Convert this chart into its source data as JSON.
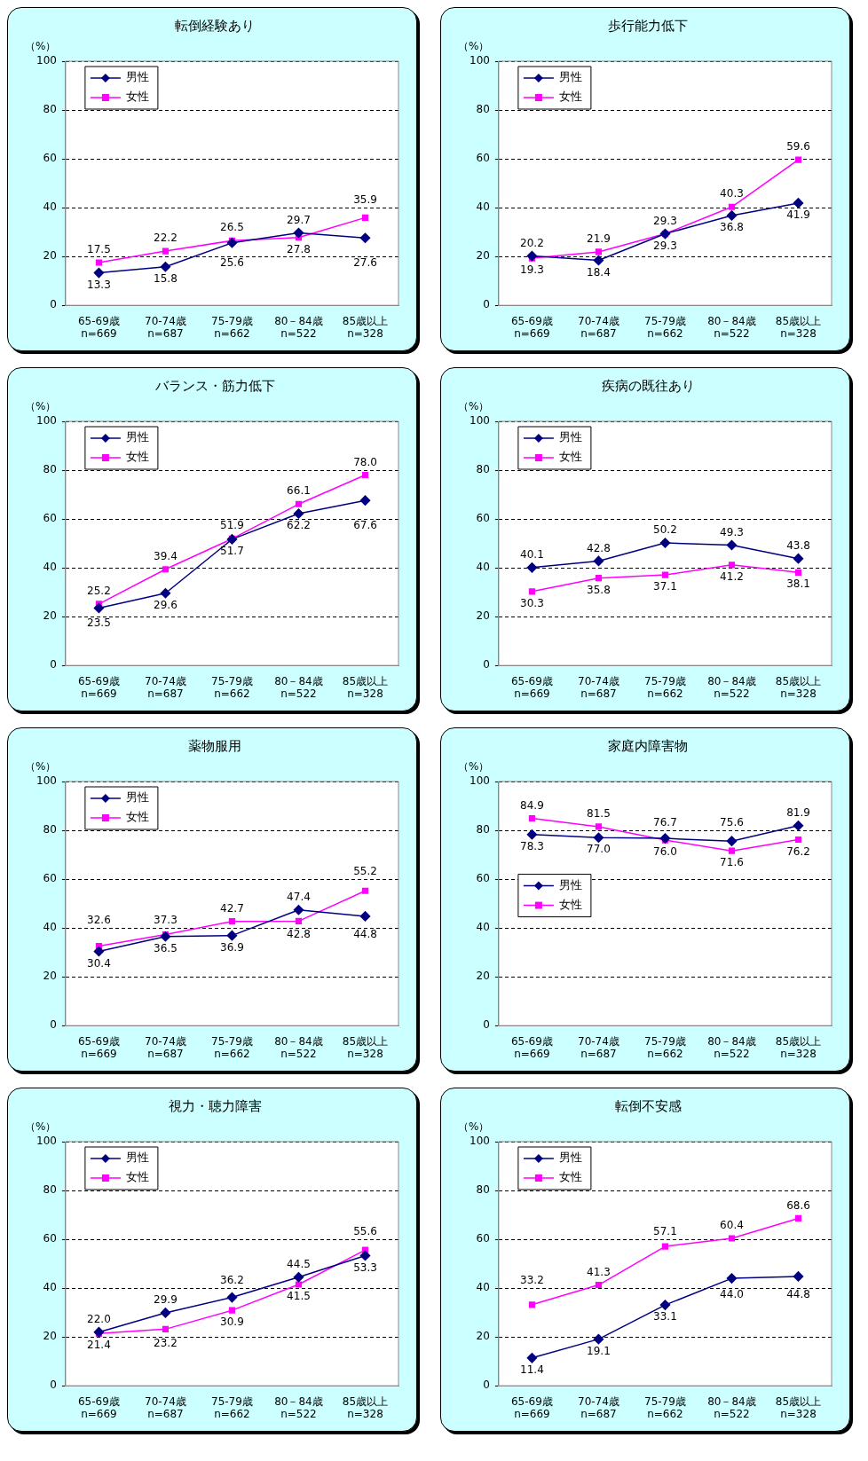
{
  "chart_data": [
    {
      "type": "line",
      "title": "転倒経験あり",
      "ylabel": "（%）",
      "categories": [
        "65-69歳\nn=669",
        "70-74歳\nn=687",
        "75-79歳\nn=662",
        "80－84歳\nn=522",
        "85歳以上\nn=328"
      ],
      "ylim": [
        0,
        100
      ],
      "yticks": [
        0,
        20,
        40,
        60,
        80,
        100
      ],
      "grid": "y",
      "legend": "top left",
      "series": [
        {
          "name": "男性",
          "color": "#000080",
          "marker": "diamond",
          "values": [
            13.3,
            15.8,
            25.6,
            29.7,
            27.6
          ],
          "value_labels": [
            "13.3",
            "15.8",
            "25.6",
            "29.7",
            "27.6"
          ]
        },
        {
          "name": "女性",
          "color": "#ff00ff",
          "marker": "square",
          "values": [
            17.5,
            22.2,
            26.5,
            27.8,
            35.9
          ],
          "value_labels": [
            "17.5",
            "22.2",
            "26.5",
            "27.8",
            "35.9"
          ]
        }
      ]
    },
    {
      "type": "line",
      "title": "歩行能力低下",
      "ylabel": "（%）",
      "categories": [
        "65-69歳\nn=669",
        "70-74歳\nn=687",
        "75-79歳\nn=662",
        "80－84歳\nn=522",
        "85歳以上\nn=328"
      ],
      "ylim": [
        0,
        100
      ],
      "yticks": [
        0,
        20,
        40,
        60,
        80,
        100
      ],
      "grid": "y",
      "legend": "top left",
      "series": [
        {
          "name": "男性",
          "color": "#000080",
          "marker": "diamond",
          "values": [
            20.2,
            18.4,
            29.3,
            36.8,
            41.9
          ],
          "value_labels": [
            "20.2",
            "18.4",
            "29.3",
            "36.8",
            "41.9"
          ]
        },
        {
          "name": "女性",
          "color": "#ff00ff",
          "marker": "square",
          "values": [
            19.3,
            21.9,
            29.3,
            40.3,
            59.6
          ],
          "value_labels": [
            "19.3",
            "21.9",
            "29.3",
            "40.3",
            "59.6"
          ]
        }
      ]
    },
    {
      "type": "line",
      "title": "バランス・筋力低下",
      "ylabel": "（%）",
      "categories": [
        "65-69歳\nn=669",
        "70-74歳\nn=687",
        "75-79歳\nn=662",
        "80－84歳\nn=522",
        "85歳以上\nn=328"
      ],
      "ylim": [
        0,
        100
      ],
      "yticks": [
        0,
        20,
        40,
        60,
        80,
        100
      ],
      "grid": "y",
      "legend": "top left",
      "series": [
        {
          "name": "男性",
          "color": "#000080",
          "marker": "diamond",
          "values": [
            23.5,
            29.6,
            51.7,
            62.2,
            67.6
          ],
          "value_labels": [
            "23.5",
            "29.6",
            "51.7",
            "62.2",
            "67.6"
          ]
        },
        {
          "name": "女性",
          "color": "#ff00ff",
          "marker": "square",
          "values": [
            25.2,
            39.4,
            51.9,
            66.1,
            78.0
          ],
          "value_labels": [
            "25.2",
            "39.4",
            "51.9",
            "66.1",
            "78.0"
          ]
        }
      ]
    },
    {
      "type": "line",
      "title": "疾病の既往あり",
      "ylabel": "（%）",
      "categories": [
        "65-69歳\nn=669",
        "70-74歳\nn=687",
        "75-79歳\nn=662",
        "80－84歳\nn=522",
        "85歳以上\nn=328"
      ],
      "ylim": [
        0,
        100
      ],
      "yticks": [
        0,
        20,
        40,
        60,
        80,
        100
      ],
      "grid": "y",
      "legend": "top left",
      "series": [
        {
          "name": "男性",
          "color": "#000080",
          "marker": "diamond",
          "values": [
            40.1,
            42.8,
            50.2,
            49.3,
            43.8
          ],
          "value_labels": [
            "40.1",
            "42.8",
            "50.2",
            "49.3",
            "43.8"
          ]
        },
        {
          "name": "女性",
          "color": "#ff00ff",
          "marker": "square",
          "values": [
            30.3,
            35.8,
            37.1,
            41.2,
            38.1
          ],
          "value_labels": [
            "30.3",
            "35.8",
            "37.1",
            "41.2",
            "38.1"
          ]
        }
      ]
    },
    {
      "type": "line",
      "title": "薬物服用",
      "ylabel": "（%）",
      "categories": [
        "65-69歳\nn=669",
        "70-74歳\nn=687",
        "75-79歳\nn=662",
        "80－84歳\nn=522",
        "85歳以上\nn=328"
      ],
      "ylim": [
        0,
        100
      ],
      "yticks": [
        0,
        20,
        40,
        60,
        80,
        100
      ],
      "grid": "y",
      "legend": "top left",
      "series": [
        {
          "name": "男性",
          "color": "#000080",
          "marker": "diamond",
          "values": [
            30.4,
            36.5,
            36.9,
            47.4,
            44.8
          ],
          "value_labels": [
            "30.4",
            "36.5",
            "36.9",
            "47.4",
            "44.8"
          ]
        },
        {
          "name": "女性",
          "color": "#ff00ff",
          "marker": "square",
          "values": [
            32.6,
            37.3,
            42.7,
            42.8,
            55.2
          ],
          "value_labels": [
            "32.6",
            "37.3",
            "42.7",
            "42.8",
            "55.2"
          ]
        }
      ]
    },
    {
      "type": "line",
      "title": "家庭内障害物",
      "ylabel": "（%）",
      "categories": [
        "65-69歳\nn=669",
        "70-74歳\nn=687",
        "75-79歳\nn=662",
        "80－84歳\nn=522",
        "85歳以上\nn=328"
      ],
      "ylim": [
        0,
        100
      ],
      "yticks": [
        0,
        20,
        40,
        60,
        80,
        100
      ],
      "grid": "y",
      "legend": "left",
      "series": [
        {
          "name": "男性",
          "color": "#000080",
          "marker": "diamond",
          "values": [
            78.3,
            77.0,
            76.7,
            75.6,
            81.9
          ],
          "value_labels": [
            "78.3",
            "77.0",
            "76.7",
            "75.6",
            "81.9"
          ]
        },
        {
          "name": "女性",
          "color": "#ff00ff",
          "marker": "square",
          "values": [
            84.9,
            81.5,
            76.0,
            71.6,
            76.2
          ],
          "value_labels": [
            "84.9",
            "81.5",
            "76.0",
            "71.6",
            "76.2"
          ]
        }
      ]
    },
    {
      "type": "line",
      "title": "視力・聴力障害",
      "ylabel": "（%）",
      "categories": [
        "65-69歳\nn=669",
        "70-74歳\nn=687",
        "75-79歳\nn=662",
        "80－84歳\nn=522",
        "85歳以上\nn=328"
      ],
      "ylim": [
        0,
        100
      ],
      "yticks": [
        0,
        20,
        40,
        60,
        80,
        100
      ],
      "grid": "y",
      "legend": "top left",
      "series": [
        {
          "name": "男性",
          "color": "#000080",
          "marker": "diamond",
          "values": [
            22.0,
            29.9,
            36.2,
            44.5,
            53.3
          ],
          "value_labels": [
            "22.0",
            "29.9",
            "36.2",
            "44.5",
            "53.3"
          ]
        },
        {
          "name": "女性",
          "color": "#ff00ff",
          "marker": "square",
          "values": [
            21.4,
            23.2,
            30.9,
            41.5,
            55.6
          ],
          "value_labels": [
            "21.4",
            "23.2",
            "30.9",
            "41.5",
            "55.6"
          ]
        }
      ]
    },
    {
      "type": "line",
      "title": "転倒不安感",
      "ylabel": "（%）",
      "categories": [
        "65-69歳\nn=669",
        "70-74歳\nn=687",
        "75-79歳\nn=662",
        "80－84歳\nn=522",
        "85歳以上\nn=328"
      ],
      "ylim": [
        0,
        100
      ],
      "yticks": [
        0,
        20,
        40,
        60,
        80,
        100
      ],
      "grid": "y",
      "legend": "top left",
      "series": [
        {
          "name": "男性",
          "color": "#000080",
          "marker": "diamond",
          "values": [
            11.4,
            19.1,
            33.1,
            44.0,
            44.8
          ],
          "value_labels": [
            "11.4",
            "19.1",
            "33.1",
            "44.0",
            "44.8"
          ]
        },
        {
          "name": "女性",
          "color": "#ff00ff",
          "marker": "square",
          "values": [
            33.2,
            41.3,
            57.1,
            60.4,
            68.6
          ],
          "value_labels": [
            "33.2",
            "41.3",
            "57.1",
            "60.4",
            "68.6"
          ]
        }
      ]
    }
  ]
}
